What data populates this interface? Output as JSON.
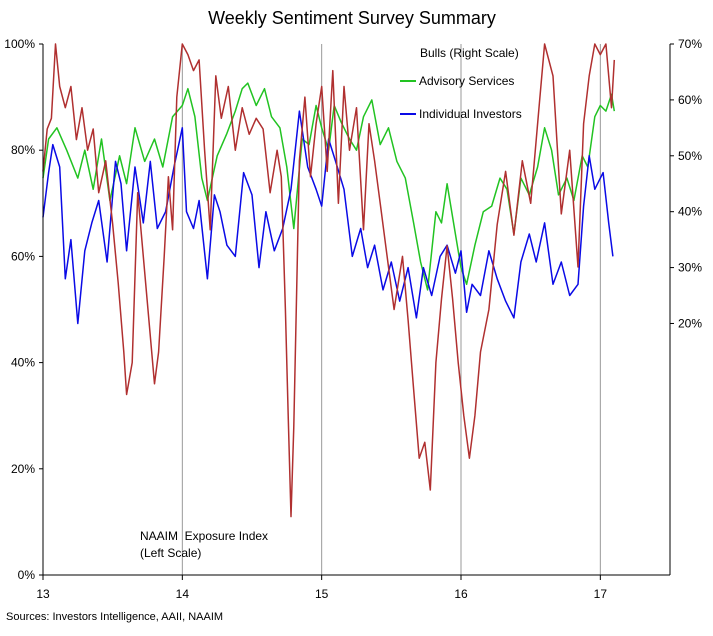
{
  "chart_data": {
    "type": "line",
    "title": "Weekly Sentiment Survey Summary",
    "source": "Sources: Investors Intelligence, AAII, NAAIM",
    "legend_title": "Bulls (Right Scale)",
    "annotation": [
      "NAAIM  Exposure Index",
      "(Left Scale)"
    ],
    "x_ticks": [
      "13",
      "14",
      "15",
      "16",
      "17"
    ],
    "xlim": [
      13,
      17.5
    ],
    "vertical_gridlines_at": [
      14,
      15,
      16,
      17
    ],
    "left_axis": {
      "ticks": [
        "0%",
        "20%",
        "40%",
        "60%",
        "80%",
        "100%"
      ],
      "ylim": [
        0,
        100
      ]
    },
    "right_axis": {
      "ticks": [
        "20%",
        "30%",
        "40%",
        "50%",
        "60%",
        "70%"
      ],
      "ylim": [
        -25,
        70
      ]
    },
    "series": [
      {
        "name": "Advisory Services",
        "axis": "right",
        "color": "#22c322",
        "points": [
          [
            13.0,
            46
          ],
          [
            13.04,
            53
          ],
          [
            13.1,
            55
          ],
          [
            13.17,
            51
          ],
          [
            13.25,
            46
          ],
          [
            13.3,
            51
          ],
          [
            13.36,
            44
          ],
          [
            13.42,
            53
          ],
          [
            13.48,
            42
          ],
          [
            13.55,
            50
          ],
          [
            13.6,
            45
          ],
          [
            13.66,
            55
          ],
          [
            13.73,
            49
          ],
          [
            13.8,
            53
          ],
          [
            13.86,
            48
          ],
          [
            13.93,
            57
          ],
          [
            14.0,
            59
          ],
          [
            14.04,
            62
          ],
          [
            14.09,
            57
          ],
          [
            14.14,
            46
          ],
          [
            14.18,
            42
          ],
          [
            14.25,
            50
          ],
          [
            14.32,
            54
          ],
          [
            14.38,
            58
          ],
          [
            14.43,
            62
          ],
          [
            14.47,
            63
          ],
          [
            14.53,
            59
          ],
          [
            14.59,
            62
          ],
          [
            14.64,
            57
          ],
          [
            14.7,
            55
          ],
          [
            14.75,
            48
          ],
          [
            14.8,
            37
          ],
          [
            14.86,
            53
          ],
          [
            14.91,
            52
          ],
          [
            14.96,
            59
          ],
          [
            15.0,
            55
          ],
          [
            15.05,
            51
          ],
          [
            15.09,
            59
          ],
          [
            15.14,
            56
          ],
          [
            15.2,
            53
          ],
          [
            15.25,
            51
          ],
          [
            15.3,
            57
          ],
          [
            15.36,
            60
          ],
          [
            15.42,
            52
          ],
          [
            15.48,
            55
          ],
          [
            15.54,
            49
          ],
          [
            15.6,
            46
          ],
          [
            15.66,
            38
          ],
          [
            15.71,
            31
          ],
          [
            15.76,
            26
          ],
          [
            15.82,
            40
          ],
          [
            15.86,
            38
          ],
          [
            15.9,
            45
          ],
          [
            15.96,
            36
          ],
          [
            16.0,
            30
          ],
          [
            16.04,
            27
          ],
          [
            16.1,
            34
          ],
          [
            16.16,
            40
          ],
          [
            16.22,
            41
          ],
          [
            16.28,
            46
          ],
          [
            16.33,
            44
          ],
          [
            16.38,
            36
          ],
          [
            16.43,
            46
          ],
          [
            16.49,
            43
          ],
          [
            16.55,
            48
          ],
          [
            16.6,
            55
          ],
          [
            16.65,
            51
          ],
          [
            16.7,
            43
          ],
          [
            16.76,
            46
          ],
          [
            16.81,
            42
          ],
          [
            16.87,
            50
          ],
          [
            16.91,
            48
          ],
          [
            16.96,
            57
          ],
          [
            17.0,
            59
          ],
          [
            17.04,
            58
          ],
          [
            17.08,
            61
          ],
          [
            17.1,
            58
          ]
        ]
      },
      {
        "name": "Individual Investors",
        "axis": "right",
        "color": "#0a0ae6",
        "points": [
          [
            13.0,
            39
          ],
          [
            13.04,
            47
          ],
          [
            13.07,
            52
          ],
          [
            13.12,
            48
          ],
          [
            13.16,
            28
          ],
          [
            13.2,
            35
          ],
          [
            13.25,
            20
          ],
          [
            13.3,
            33
          ],
          [
            13.35,
            38
          ],
          [
            13.4,
            42
          ],
          [
            13.46,
            31
          ],
          [
            13.52,
            49
          ],
          [
            13.56,
            45
          ],
          [
            13.6,
            33
          ],
          [
            13.66,
            48
          ],
          [
            13.72,
            38
          ],
          [
            13.77,
            49
          ],
          [
            13.82,
            37
          ],
          [
            13.88,
            40
          ],
          [
            13.94,
            48
          ],
          [
            14.0,
            55
          ],
          [
            14.03,
            40
          ],
          [
            14.08,
            37
          ],
          [
            14.12,
            42
          ],
          [
            14.18,
            28
          ],
          [
            14.23,
            43
          ],
          [
            14.27,
            40
          ],
          [
            14.32,
            34
          ],
          [
            14.38,
            32
          ],
          [
            14.44,
            47
          ],
          [
            14.5,
            43
          ],
          [
            14.55,
            30
          ],
          [
            14.6,
            40
          ],
          [
            14.66,
            33
          ],
          [
            14.72,
            37
          ],
          [
            14.78,
            44
          ],
          [
            14.84,
            58
          ],
          [
            14.9,
            48
          ],
          [
            14.96,
            44
          ],
          [
            15.0,
            41
          ],
          [
            15.05,
            53
          ],
          [
            15.1,
            49
          ],
          [
            15.16,
            44
          ],
          [
            15.22,
            32
          ],
          [
            15.28,
            37
          ],
          [
            15.33,
            30
          ],
          [
            15.38,
            34
          ],
          [
            15.44,
            26
          ],
          [
            15.5,
            31
          ],
          [
            15.56,
            24
          ],
          [
            15.62,
            30
          ],
          [
            15.68,
            21
          ],
          [
            15.73,
            30
          ],
          [
            15.79,
            25
          ],
          [
            15.85,
            32
          ],
          [
            15.9,
            34
          ],
          [
            15.96,
            29
          ],
          [
            16.0,
            33
          ],
          [
            16.04,
            22
          ],
          [
            16.08,
            27
          ],
          [
            16.14,
            25
          ],
          [
            16.2,
            33
          ],
          [
            16.26,
            28
          ],
          [
            16.32,
            24
          ],
          [
            16.38,
            21
          ],
          [
            16.43,
            31
          ],
          [
            16.49,
            36
          ],
          [
            16.54,
            31
          ],
          [
            16.6,
            38
          ],
          [
            16.66,
            27
          ],
          [
            16.72,
            31
          ],
          [
            16.78,
            25
          ],
          [
            16.84,
            27
          ],
          [
            16.88,
            41
          ],
          [
            16.92,
            50
          ],
          [
            16.96,
            44
          ],
          [
            17.02,
            47
          ],
          [
            17.06,
            38
          ],
          [
            17.09,
            32
          ]
        ]
      },
      {
        "name": "NAAIM Exposure Index",
        "axis": "left",
        "color": "#b03030",
        "points": [
          [
            13.0,
            76
          ],
          [
            13.03,
            84
          ],
          [
            13.06,
            86
          ],
          [
            13.09,
            100
          ],
          [
            13.12,
            92
          ],
          [
            13.16,
            88
          ],
          [
            13.2,
            92
          ],
          [
            13.24,
            82
          ],
          [
            13.28,
            88
          ],
          [
            13.32,
            80
          ],
          [
            13.36,
            84
          ],
          [
            13.4,
            72
          ],
          [
            13.45,
            78
          ],
          [
            13.5,
            66
          ],
          [
            13.54,
            55
          ],
          [
            13.58,
            42
          ],
          [
            13.6,
            34
          ],
          [
            13.64,
            40
          ],
          [
            13.68,
            72
          ],
          [
            13.72,
            60
          ],
          [
            13.76,
            48
          ],
          [
            13.8,
            36
          ],
          [
            13.83,
            42
          ],
          [
            13.87,
            60
          ],
          [
            13.9,
            75
          ],
          [
            13.93,
            65
          ],
          [
            13.96,
            90
          ],
          [
            14.0,
            100
          ],
          [
            14.04,
            98
          ],
          [
            14.08,
            95
          ],
          [
            14.12,
            97
          ],
          [
            14.16,
            80
          ],
          [
            14.2,
            65
          ],
          [
            14.24,
            94
          ],
          [
            14.28,
            86
          ],
          [
            14.33,
            92
          ],
          [
            14.38,
            80
          ],
          [
            14.43,
            88
          ],
          [
            14.48,
            83
          ],
          [
            14.53,
            86
          ],
          [
            14.58,
            84
          ],
          [
            14.63,
            72
          ],
          [
            14.68,
            80
          ],
          [
            14.71,
            75
          ],
          [
            14.74,
            50
          ],
          [
            14.76,
            30
          ],
          [
            14.78,
            11
          ],
          [
            14.8,
            28
          ],
          [
            14.84,
            78
          ],
          [
            14.88,
            90
          ],
          [
            14.92,
            75
          ],
          [
            14.96,
            85
          ],
          [
            15.0,
            92
          ],
          [
            15.04,
            76
          ],
          [
            15.08,
            95
          ],
          [
            15.12,
            70
          ],
          [
            15.16,
            92
          ],
          [
            15.2,
            80
          ],
          [
            15.25,
            88
          ],
          [
            15.3,
            65
          ],
          [
            15.34,
            85
          ],
          [
            15.38,
            78
          ],
          [
            15.42,
            70
          ],
          [
            15.48,
            58
          ],
          [
            15.52,
            50
          ],
          [
            15.58,
            60
          ],
          [
            15.62,
            48
          ],
          [
            15.66,
            35
          ],
          [
            15.7,
            22
          ],
          [
            15.74,
            25
          ],
          [
            15.78,
            16
          ],
          [
            15.82,
            40
          ],
          [
            15.86,
            52
          ],
          [
            15.9,
            62
          ],
          [
            15.94,
            52
          ],
          [
            15.98,
            40
          ],
          [
            16.02,
            30
          ],
          [
            16.06,
            22
          ],
          [
            16.1,
            30
          ],
          [
            16.14,
            42
          ],
          [
            16.2,
            50
          ],
          [
            16.26,
            66
          ],
          [
            16.32,
            76
          ],
          [
            16.38,
            64
          ],
          [
            16.44,
            78
          ],
          [
            16.5,
            70
          ],
          [
            16.56,
            88
          ],
          [
            16.6,
            100
          ],
          [
            16.66,
            94
          ],
          [
            16.72,
            68
          ],
          [
            16.78,
            80
          ],
          [
            16.84,
            58
          ],
          [
            16.88,
            85
          ],
          [
            16.92,
            94
          ],
          [
            16.96,
            100
          ],
          [
            17.0,
            98
          ],
          [
            17.04,
            100
          ],
          [
            17.08,
            88
          ],
          [
            17.1,
            97
          ]
        ]
      }
    ]
  }
}
